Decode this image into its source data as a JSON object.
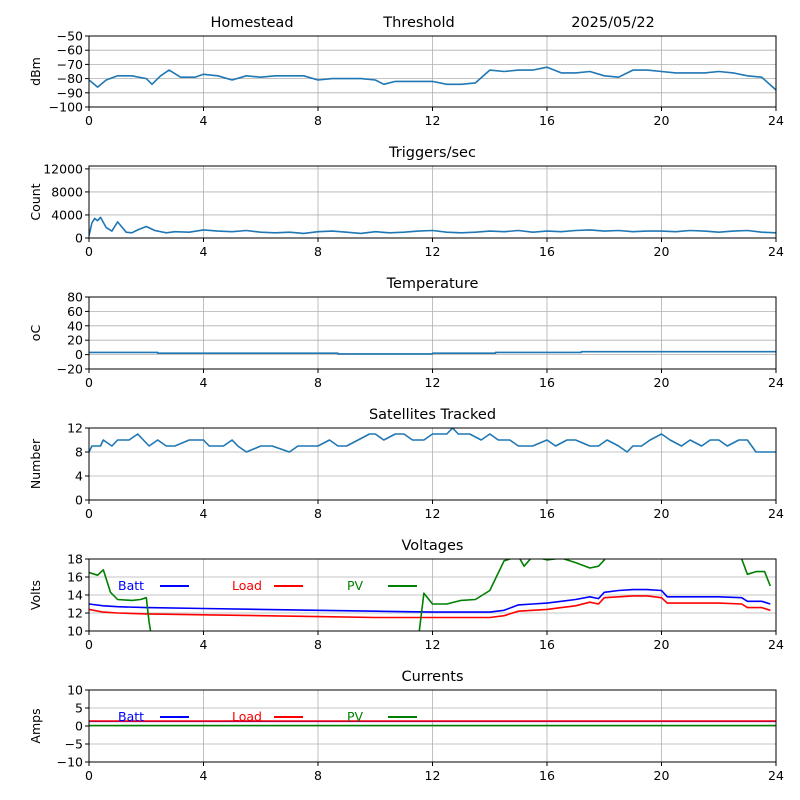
{
  "header": {
    "station": "Homestead",
    "mode": "Threshold",
    "date": "2025/05/22"
  },
  "x_ticks": [
    "0",
    "4",
    "8",
    "12",
    "16",
    "20",
    "24"
  ],
  "chart_data": [
    {
      "type": "line",
      "title": "",
      "ylabel": "dBm",
      "xlim": [
        0,
        24
      ],
      "ylim": [
        -100,
        -50
      ],
      "yticks": [
        -50,
        -60,
        -70,
        -80,
        -90,
        -100
      ],
      "ytick_labels": [
        "−50",
        "−60",
        "−70",
        "−80",
        "−90",
        "−100"
      ],
      "grid": true,
      "series": [
        {
          "name": "",
          "color": "#1f77b4",
          "x": [
            0,
            0.3,
            0.6,
            1,
            1.5,
            2,
            2.2,
            2.5,
            2.8,
            3.2,
            3.7,
            4,
            4.5,
            5,
            5.5,
            6,
            6.5,
            7,
            7.5,
            8,
            8.5,
            9,
            9.5,
            10,
            10.3,
            10.7,
            11,
            11.5,
            12,
            12.5,
            13,
            13.5,
            14,
            14.5,
            15,
            15.5,
            16,
            16.5,
            17,
            17.5,
            18,
            18.5,
            19,
            19.5,
            20,
            20.5,
            21,
            21.5,
            22,
            22.5,
            23,
            23.5,
            24
          ],
          "y": [
            -81,
            -86,
            -81,
            -78,
            -78,
            -80,
            -84,
            -78,
            -74,
            -79,
            -79,
            -77,
            -78,
            -81,
            -78,
            -79,
            -78,
            -78,
            -78,
            -81,
            -80,
            -80,
            -80,
            -81,
            -84,
            -82,
            -82,
            -82,
            -82,
            -84,
            -84,
            -83,
            -74,
            -75,
            -74,
            -74,
            -72,
            -76,
            -76,
            -75,
            -78,
            -79,
            -74,
            -74,
            -75,
            -76,
            -76,
            -76,
            -75,
            -76,
            -78,
            -79,
            -88
          ]
        }
      ]
    },
    {
      "type": "line",
      "title": "Triggers/sec",
      "ylabel": "Count",
      "xlim": [
        0,
        24
      ],
      "ylim": [
        0,
        12500
      ],
      "yticks": [
        0,
        4000,
        8000,
        12000
      ],
      "ytick_labels": [
        "0",
        "4000",
        "8000",
        "12000"
      ],
      "grid": true,
      "series": [
        {
          "name": "",
          "color": "#1f77b4",
          "x": [
            0,
            0.1,
            0.2,
            0.3,
            0.4,
            0.6,
            0.8,
            1,
            1.3,
            1.5,
            1.7,
            2,
            2.3,
            2.7,
            3,
            3.5,
            4,
            4.5,
            5,
            5.5,
            6,
            6.5,
            7,
            7.5,
            8,
            8.5,
            9,
            9.5,
            10,
            10.5,
            11,
            11.5,
            12,
            12.5,
            13,
            13.5,
            14,
            14.5,
            15,
            15.5,
            16,
            16.5,
            17,
            17.5,
            18,
            18.5,
            19,
            19.5,
            20,
            20.5,
            21,
            21.5,
            22,
            22.5,
            23,
            23.5,
            24
          ],
          "y": [
            400,
            2600,
            3400,
            3000,
            3600,
            1800,
            1200,
            2800,
            1000,
            900,
            1400,
            2000,
            1300,
            900,
            1100,
            1000,
            1400,
            1200,
            1100,
            1300,
            1000,
            900,
            1000,
            800,
            1100,
            1200,
            1000,
            800,
            1100,
            900,
            1000,
            1200,
            1300,
            1000,
            900,
            1000,
            1200,
            1100,
            1300,
            1000,
            1200,
            1100,
            1300,
            1400,
            1200,
            1300,
            1100,
            1200,
            1200,
            1100,
            1300,
            1200,
            1000,
            1200,
            1300,
            1000,
            900
          ]
        }
      ]
    },
    {
      "type": "line",
      "title": "Temperature",
      "ylabel": "oC",
      "xlim": [
        0,
        24
      ],
      "ylim": [
        -20,
        80
      ],
      "yticks": [
        -20,
        0,
        20,
        40,
        60,
        80
      ],
      "ytick_labels": [
        "−20",
        "0",
        "20",
        "40",
        "60",
        "80"
      ],
      "grid": true,
      "series": [
        {
          "name": "",
          "color": "#1f77b4",
          "x": [
            0,
            2.4,
            2.4,
            8.7,
            8.7,
            12,
            12,
            14.2,
            14.2,
            17.2,
            17.2,
            24
          ],
          "y": [
            3,
            3,
            2,
            2,
            1,
            1,
            2,
            2,
            3,
            3,
            4,
            4
          ]
        }
      ]
    },
    {
      "type": "line",
      "title": "Satellites Tracked",
      "ylabel": "Number",
      "xlim": [
        0,
        24
      ],
      "ylim": [
        0,
        12
      ],
      "yticks": [
        0,
        4,
        8,
        12
      ],
      "ytick_labels": [
        "0",
        "4",
        "8",
        "12"
      ],
      "grid": true,
      "series": [
        {
          "name": "",
          "color": "#1f77b4",
          "x": [
            0,
            0.1,
            0.4,
            0.5,
            0.8,
            1,
            1.4,
            1.7,
            1.9,
            2.1,
            2.4,
            2.7,
            3,
            3.5,
            4,
            4.2,
            4.7,
            5,
            5.2,
            5.5,
            6,
            6.4,
            7,
            7.3,
            8,
            8.4,
            8.7,
            9,
            9.4,
            9.8,
            10,
            10.3,
            10.7,
            11,
            11.3,
            11.7,
            12,
            12.5,
            12.7,
            12.9,
            13.3,
            13.7,
            14,
            14.3,
            14.7,
            15,
            15.5,
            16,
            16.3,
            16.7,
            17,
            17.5,
            17.8,
            18.1,
            18.5,
            18.8,
            19,
            19.3,
            19.6,
            20,
            20.3,
            20.7,
            21,
            21.4,
            21.7,
            22,
            22.3,
            22.7,
            23,
            23.3,
            24
          ],
          "y": [
            8,
            9,
            9,
            10,
            9,
            10,
            10,
            11,
            10,
            9,
            10,
            9,
            9,
            10,
            10,
            9,
            9,
            10,
            9,
            8,
            9,
            9,
            8,
            9,
            9,
            10,
            9,
            9,
            10,
            11,
            11,
            10,
            11,
            11,
            10,
            10,
            11,
            11,
            12,
            11,
            11,
            10,
            11,
            10,
            10,
            9,
            9,
            10,
            9,
            10,
            10,
            9,
            9,
            10,
            9,
            8,
            9,
            9,
            10,
            11,
            10,
            9,
            10,
            9,
            10,
            10,
            9,
            10,
            10,
            8,
            8
          ]
        }
      ]
    },
    {
      "type": "line",
      "title": "Voltages",
      "ylabel": "Volts",
      "xlim": [
        0,
        24
      ],
      "ylim": [
        10,
        18
      ],
      "yticks": [
        10,
        12,
        14,
        16,
        18
      ],
      "ytick_labels": [
        "10",
        "12",
        "14",
        "16",
        "18"
      ],
      "grid": true,
      "legend": "top-inline",
      "series": [
        {
          "name": "Batt",
          "color": "#0000ff",
          "x": [
            0,
            0.5,
            1,
            2,
            4,
            6,
            8,
            10,
            12,
            13,
            14,
            14.5,
            15,
            15.5,
            16,
            16.5,
            17,
            17.5,
            17.8,
            18,
            18.5,
            19,
            19.5,
            20,
            20.2,
            21,
            22,
            22.8,
            23,
            23.5,
            23.8
          ],
          "y": [
            13.0,
            12.8,
            12.7,
            12.6,
            12.5,
            12.4,
            12.3,
            12.2,
            12.1,
            12.1,
            12.1,
            12.3,
            12.9,
            13.0,
            13.1,
            13.3,
            13.5,
            13.8,
            13.6,
            14.3,
            14.5,
            14.6,
            14.6,
            14.5,
            13.8,
            13.8,
            13.8,
            13.7,
            13.3,
            13.3,
            13.0
          ]
        },
        {
          "name": "Load",
          "color": "#ff0000",
          "x": [
            0,
            0.5,
            1,
            2,
            4,
            6,
            8,
            10,
            12,
            13,
            14,
            14.5,
            15,
            15.5,
            16,
            16.5,
            17,
            17.5,
            17.8,
            18,
            18.5,
            19,
            19.5,
            20,
            20.2,
            21,
            22,
            22.8,
            23,
            23.5,
            23.8
          ],
          "y": [
            12.4,
            12.1,
            12.0,
            11.9,
            11.8,
            11.7,
            11.6,
            11.5,
            11.5,
            11.5,
            11.5,
            11.7,
            12.2,
            12.3,
            12.4,
            12.6,
            12.8,
            13.2,
            13.0,
            13.7,
            13.8,
            13.9,
            13.9,
            13.7,
            13.1,
            13.1,
            13.1,
            13.0,
            12.6,
            12.6,
            12.3
          ]
        },
        {
          "name": "PV",
          "color": "#008000",
          "x": [
            0,
            0.3,
            0.5,
            0.75,
            1,
            1.5,
            1.8,
            2,
            2.1,
            2.2,
            11.5,
            11.7,
            12,
            12.5,
            13,
            13.5,
            14,
            14.5,
            15,
            15.2,
            15.5,
            16,
            16.5,
            17,
            17.5,
            17.8,
            18,
            18.2,
            22.5,
            22.8,
            23,
            23.3,
            23.6,
            23.8
          ],
          "y": [
            16.5,
            16.2,
            16.8,
            14.3,
            13.5,
            13.4,
            13.5,
            13.7,
            11.0,
            9.0,
            9.0,
            14.2,
            13.0,
            13.0,
            13.4,
            13.5,
            14.5,
            17.8,
            18.3,
            17.2,
            18.3,
            17.9,
            18.1,
            17.6,
            17.0,
            17.2,
            17.9,
            19.0,
            19.0,
            18.0,
            16.3,
            16.6,
            16.6,
            15.0
          ]
        }
      ]
    },
    {
      "type": "line",
      "title": "Currents",
      "ylabel": "Amps",
      "xlim": [
        0,
        24
      ],
      "ylim": [
        -10,
        10
      ],
      "yticks": [
        -10,
        -5,
        0,
        5,
        10
      ],
      "ytick_labels": [
        "−10",
        "−5",
        "0",
        "5",
        "10"
      ],
      "grid": true,
      "legend": "top-inline",
      "series": [
        {
          "name": "Batt",
          "color": "#0000ff",
          "x": [
            0,
            24
          ],
          "y": [
            1.3,
            1.3
          ]
        },
        {
          "name": "Load",
          "color": "#ff0000",
          "x": [
            0,
            24
          ],
          "y": [
            1.4,
            1.4
          ]
        },
        {
          "name": "PV",
          "color": "#008000",
          "x": [
            0,
            24
          ],
          "y": [
            0.1,
            0.1
          ]
        }
      ]
    }
  ]
}
